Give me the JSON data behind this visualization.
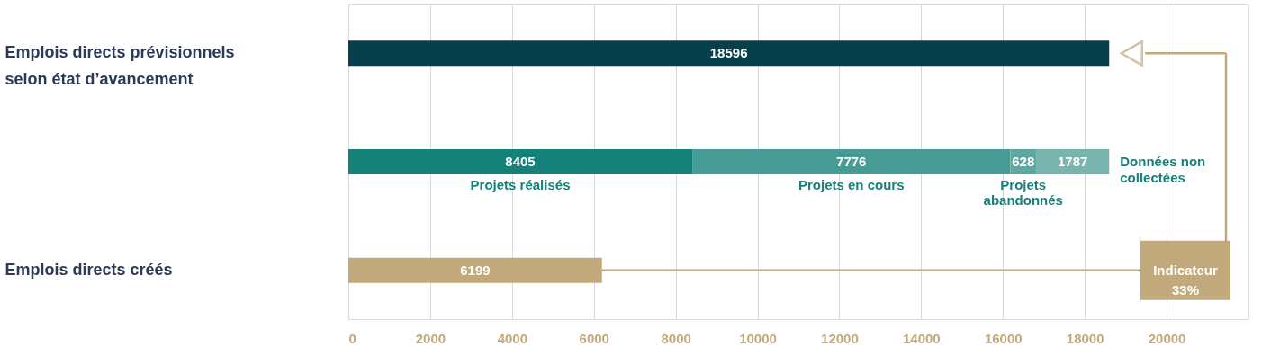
{
  "chart_data": {
    "type": "bar",
    "orientation": "horizontal",
    "stacked": true,
    "categories": [
      "Emplois directs prévisionnels selon état d’avancement",
      null,
      "Emplois directs créés"
    ],
    "series": [
      {
        "color": "#07404c",
        "values": [
          18596,
          null,
          null
        ]
      },
      {
        "name": "Projets réalisés",
        "color": "#158178",
        "values": [
          null,
          8405,
          null
        ]
      },
      {
        "name": "Projets en cours",
        "color": "#469c94",
        "values": [
          null,
          7776,
          null
        ]
      },
      {
        "name": "Projets abandonnés",
        "color": "#5ea89f",
        "values": [
          null,
          628,
          null
        ]
      },
      {
        "name": "Données non collectées",
        "color": "#79b5ae",
        "values": [
          null,
          1787,
          null
        ]
      },
      {
        "color": "#c2a97c",
        "values": [
          null,
          null,
          6199
        ]
      }
    ],
    "xlim": [
      0,
      22000
    ],
    "xticks": [
      0,
      2000,
      4000,
      6000,
      8000,
      10000,
      12000,
      14000,
      16000,
      18000,
      20000
    ],
    "grid": "x",
    "legend": false,
    "data_labels": true,
    "annotations": [
      "Indicateur 33%"
    ]
  }
}
